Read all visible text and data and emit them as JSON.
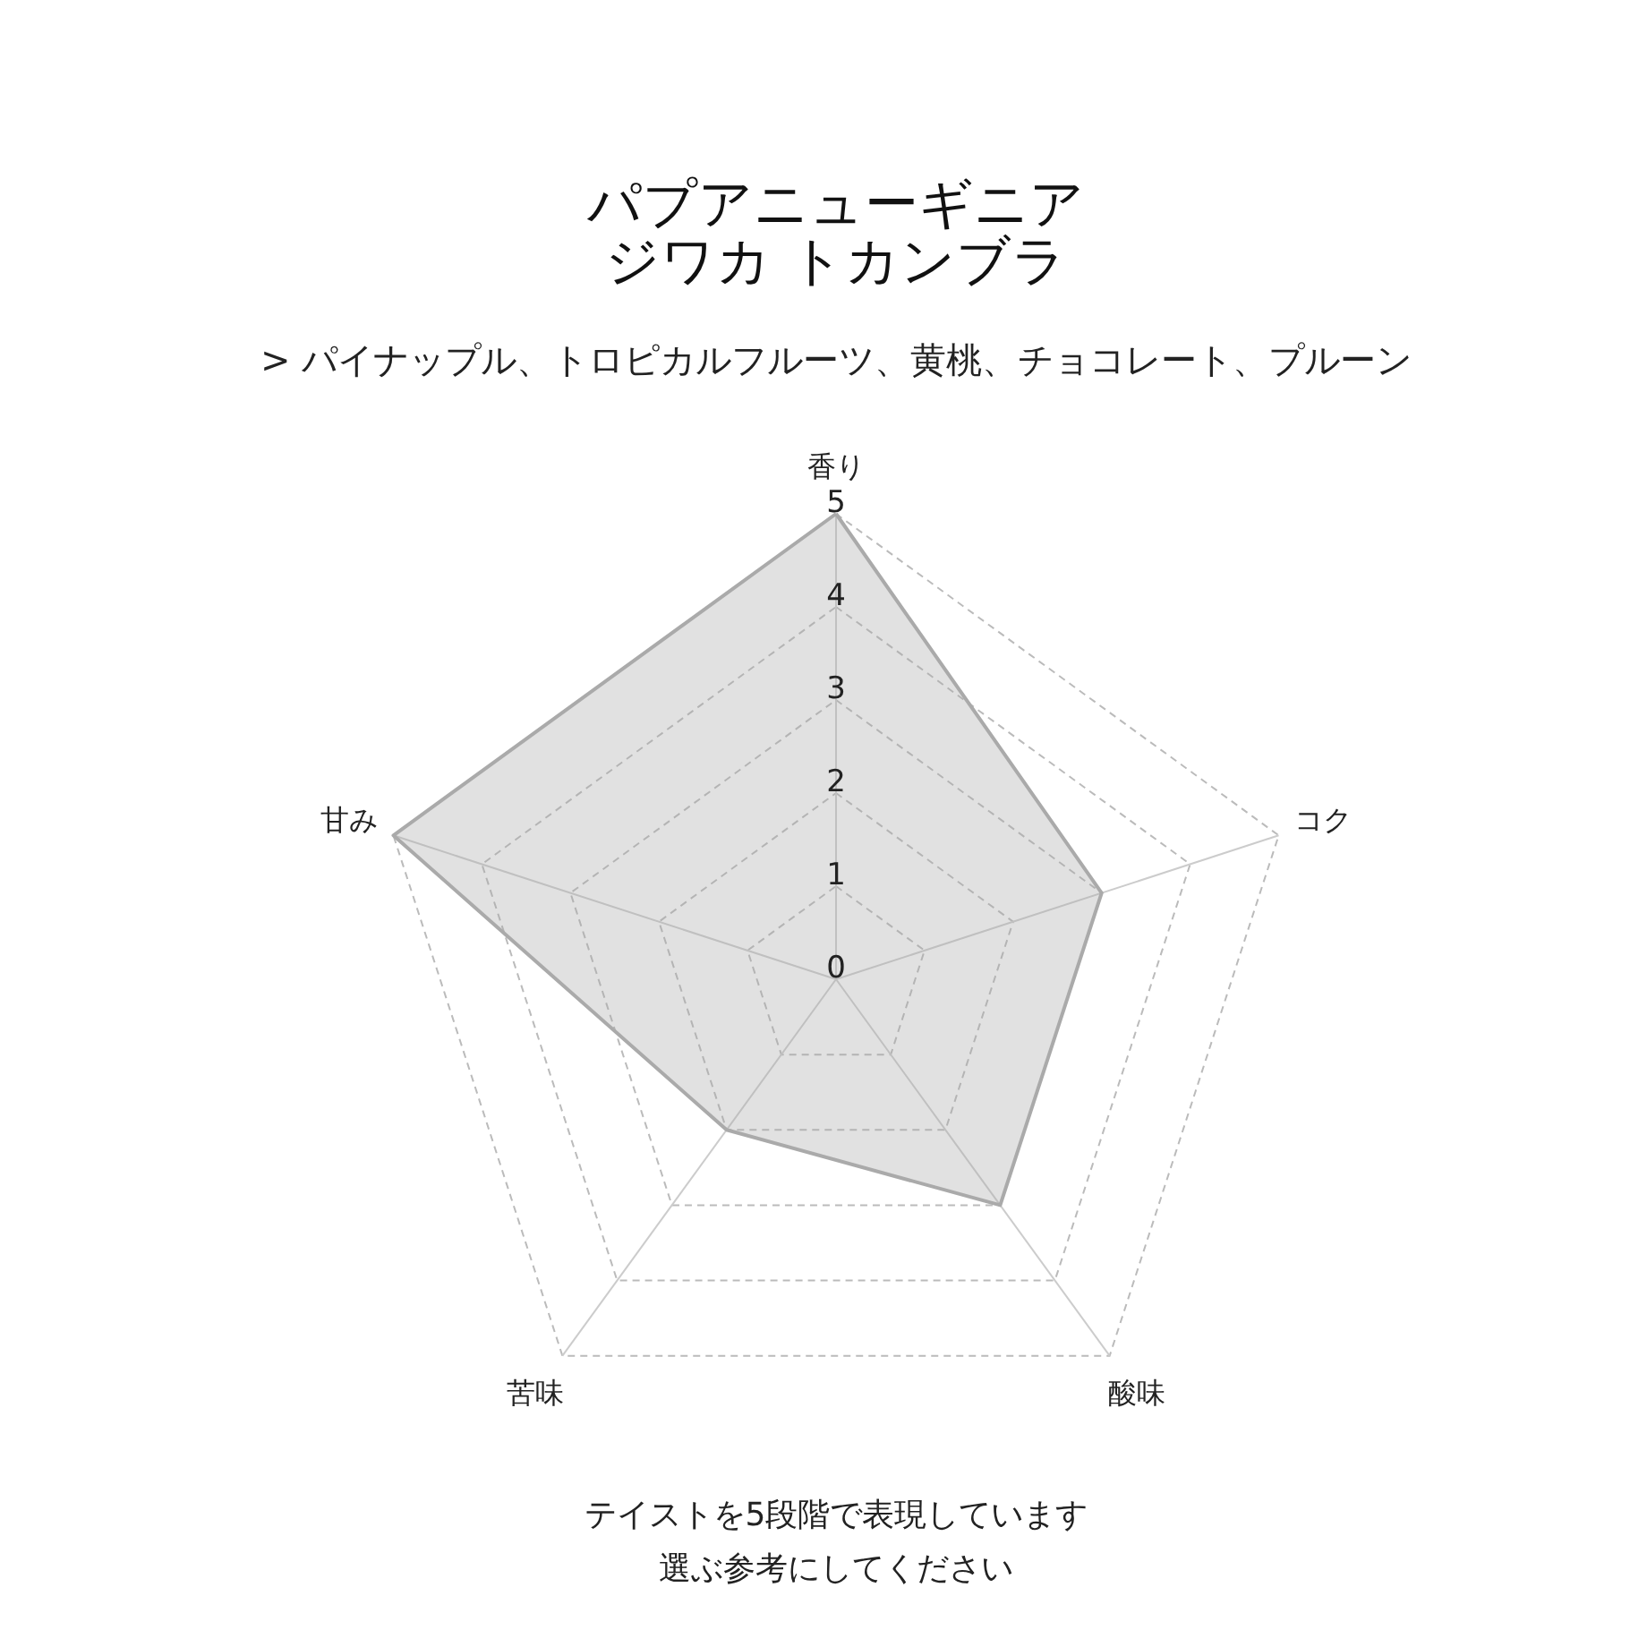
{
  "chart_data": {
    "type": "radar",
    "title": "パプアニューギニアジワカ トカンブラ",
    "subtitle": "> パイナップル、トロピカルフルーツ、黄桃、チョコレート、プルーン",
    "categories": [
      "香り",
      "コク",
      "酸味",
      "苦味",
      "甘み"
    ],
    "series": [
      {
        "color": "#aaaaaa",
        "values": [
          5,
          3,
          3,
          2,
          5
        ]
      }
    ],
    "ylim": [
      0,
      5
    ],
    "yticks": [
      0,
      1,
      2,
      3,
      4,
      5
    ],
    "grid": true,
    "annotations": [
      "テイストを5段階で表現しています",
      "選ぶ参考にしてください"
    ]
  }
}
